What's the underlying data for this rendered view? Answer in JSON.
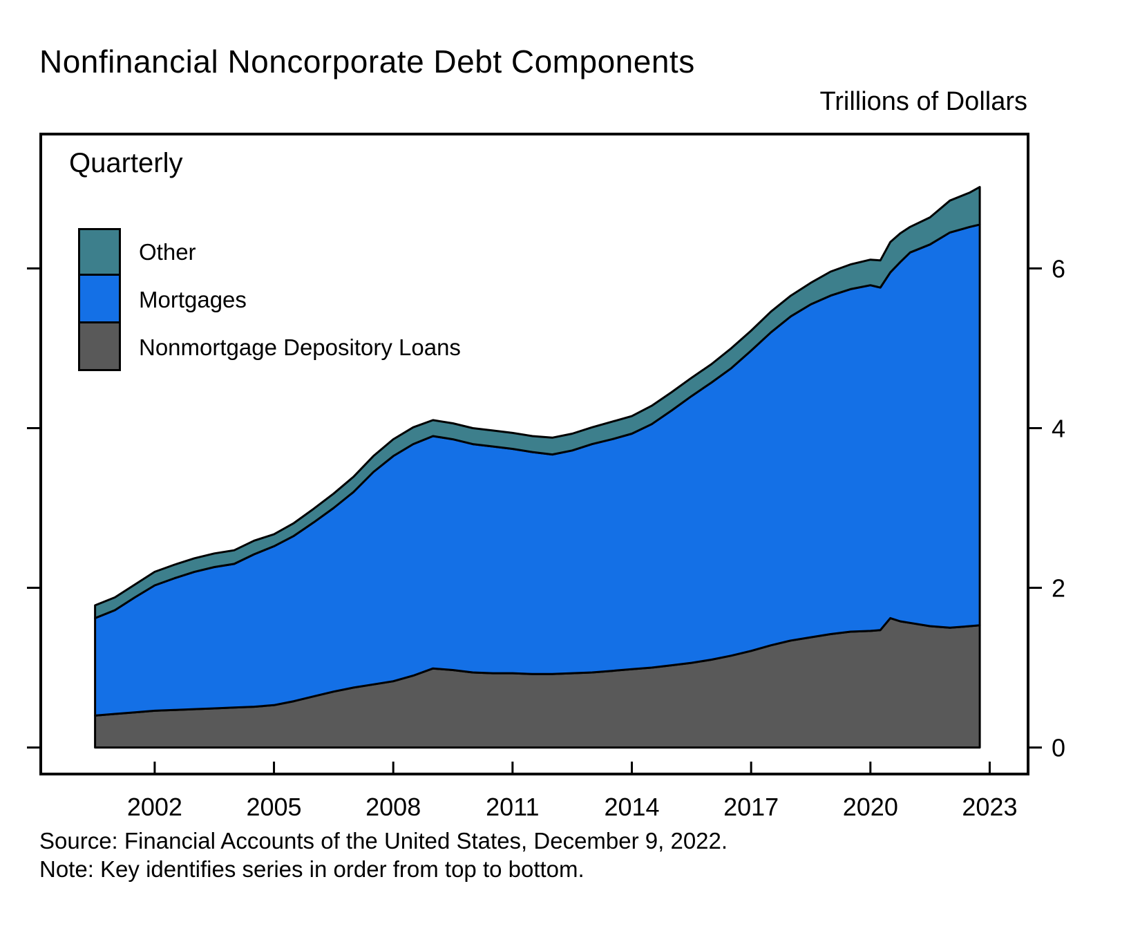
{
  "header": {
    "title": "Nonfinancial Noncorporate Debt Components",
    "units_label": "Trillions of Dollars",
    "frequency_label": "Quarterly"
  },
  "footer": {
    "source_line": "Source: Financial Accounts of the United States, December 9, 2022.",
    "note_line": "Note: Key identifies series in order from top to bottom."
  },
  "chart_data": {
    "type": "area",
    "stacked": true,
    "title": "Nonfinancial Noncorporate Debt Components",
    "ylabel": "Trillions of Dollars",
    "frequency": "Quarterly",
    "legend_position": "upper-left-inside",
    "legend_order_top_to_bottom": [
      "Other",
      "Mortgages",
      "Nonmortgage Depository Loans"
    ],
    "grid": false,
    "outline_color": "#000000",
    "xlim": [
      1999.1,
      2024.0
    ],
    "ylim": [
      -0.35,
      7.7
    ],
    "xticks": [
      2002,
      2005,
      2008,
      2011,
      2014,
      2017,
      2020,
      2023
    ],
    "yticks": [
      0,
      2,
      4,
      6
    ],
    "ytick_side": "right",
    "x": [
      2000.5,
      2001,
      2001.5,
      2002,
      2002.5,
      2003,
      2003.5,
      2004,
      2004.5,
      2005,
      2005.5,
      2006,
      2006.5,
      2007,
      2007.5,
      2008,
      2008.5,
      2009,
      2009.5,
      2010,
      2010.5,
      2011,
      2011.5,
      2012,
      2012.5,
      2013,
      2013.5,
      2014,
      2014.5,
      2015,
      2015.5,
      2016,
      2016.5,
      2017,
      2017.5,
      2018,
      2018.5,
      2019,
      2019.5,
      2020,
      2020.25,
      2020.5,
      2020.75,
      2021,
      2021.5,
      2022,
      2022.5,
      2022.75
    ],
    "series": [
      {
        "name": "Nonmortgage Depository Loans",
        "color": "#595959",
        "values": [
          0.4,
          0.42,
          0.44,
          0.46,
          0.47,
          0.48,
          0.49,
          0.5,
          0.51,
          0.53,
          0.58,
          0.64,
          0.7,
          0.75,
          0.79,
          0.83,
          0.9,
          0.99,
          0.97,
          0.94,
          0.93,
          0.93,
          0.92,
          0.92,
          0.93,
          0.94,
          0.96,
          0.98,
          1.0,
          1.03,
          1.06,
          1.1,
          1.15,
          1.21,
          1.28,
          1.34,
          1.38,
          1.42,
          1.45,
          1.46,
          1.47,
          1.62,
          1.58,
          1.56,
          1.52,
          1.5,
          1.52,
          1.53
        ]
      },
      {
        "name": "Mortgages",
        "color": "#1470E6",
        "values": [
          1.22,
          1.3,
          1.44,
          1.57,
          1.65,
          1.72,
          1.77,
          1.8,
          1.91,
          1.99,
          2.07,
          2.18,
          2.3,
          2.45,
          2.66,
          2.82,
          2.9,
          2.91,
          2.89,
          2.86,
          2.84,
          2.81,
          2.78,
          2.75,
          2.79,
          2.86,
          2.9,
          2.95,
          3.05,
          3.19,
          3.34,
          3.47,
          3.6,
          3.76,
          3.92,
          4.06,
          4.17,
          4.24,
          4.29,
          4.33,
          4.29,
          4.33,
          4.5,
          4.64,
          4.78,
          4.95,
          5.0,
          5.02
        ]
      },
      {
        "name": "Other",
        "color": "#3D7F8C",
        "values": [
          0.16,
          0.16,
          0.16,
          0.17,
          0.17,
          0.17,
          0.17,
          0.17,
          0.17,
          0.15,
          0.16,
          0.17,
          0.18,
          0.19,
          0.2,
          0.21,
          0.21,
          0.2,
          0.2,
          0.2,
          0.2,
          0.2,
          0.2,
          0.21,
          0.21,
          0.21,
          0.22,
          0.22,
          0.23,
          0.23,
          0.23,
          0.23,
          0.25,
          0.25,
          0.26,
          0.26,
          0.27,
          0.3,
          0.31,
          0.32,
          0.34,
          0.38,
          0.36,
          0.32,
          0.34,
          0.4,
          0.43,
          0.47
        ]
      }
    ]
  }
}
